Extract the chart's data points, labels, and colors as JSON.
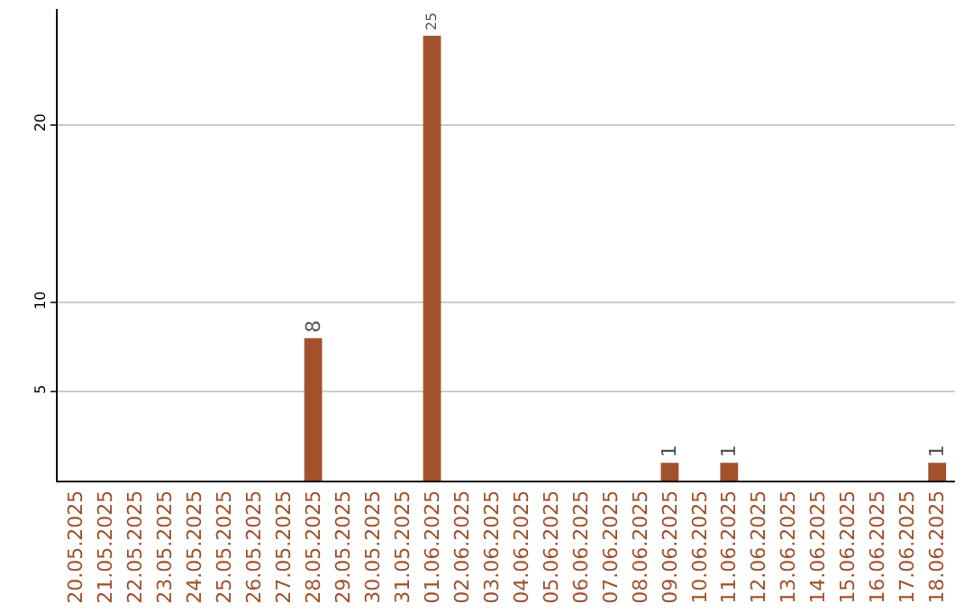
{
  "chart_data": {
    "type": "bar",
    "categories": [
      "20.05.2025",
      "21.05.2025",
      "22.05.2025",
      "23.05.2025",
      "24.05.2025",
      "25.05.2025",
      "26.05.2025",
      "27.05.2025",
      "28.05.2025",
      "29.05.2025",
      "30.05.2025",
      "31.05.2025",
      "01.06.2025",
      "02.06.2025",
      "03.06.2025",
      "04.06.2025",
      "05.06.2025",
      "06.06.2025",
      "07.06.2025",
      "08.06.2025",
      "09.06.2025",
      "10.06.2025",
      "11.06.2025",
      "12.06.2025",
      "13.06.2025",
      "14.06.2025",
      "15.06.2025",
      "16.06.2025",
      "17.06.2025",
      "18.06.2025"
    ],
    "values": [
      0,
      0,
      0,
      0,
      0,
      0,
      0,
      0,
      8,
      0,
      0,
      0,
      25,
      0,
      0,
      0,
      0,
      0,
      0,
      0,
      1,
      0,
      1,
      0,
      0,
      0,
      0,
      0,
      0,
      1
    ],
    "value_labels": [
      null,
      null,
      null,
      null,
      null,
      null,
      null,
      null,
      "8",
      null,
      null,
      null,
      "25",
      null,
      null,
      null,
      null,
      null,
      null,
      null,
      "1",
      null,
      "1",
      null,
      null,
      null,
      null,
      null,
      null,
      "1"
    ],
    "color": "#a0522d",
    "ylim": [
      0,
      26.5
    ],
    "yticks": [
      5,
      10,
      20
    ],
    "grid": "y",
    "legend": false
  }
}
